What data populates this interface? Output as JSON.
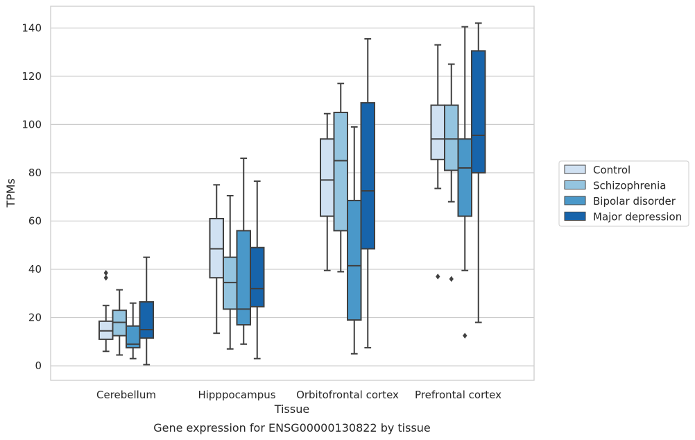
{
  "caption": "Gene expression for ENSG00000130822 by tissue",
  "chart_data": {
    "type": "boxplot",
    "xlabel": "Tissue",
    "ylabel": "TPMs",
    "ylim": [
      -6,
      149
    ],
    "yticks": [
      0,
      20,
      40,
      60,
      80,
      100,
      120,
      140
    ],
    "grid": "horizontal",
    "legend_position": "right",
    "categories": [
      "Cerebellum",
      "Hipppocampus",
      "Orbitofrontal cortex",
      "Prefrontal cortex"
    ],
    "series": [
      {
        "name": "Control",
        "color": "#d0e1f2",
        "boxes": [
          {
            "whisker_low": 6,
            "q1": 11,
            "median": 14.5,
            "q3": 18.5,
            "whisker_high": 25,
            "outliers": [
              36.5,
              38.5
            ]
          },
          {
            "whisker_low": 13.5,
            "q1": 36.5,
            "median": 48.5,
            "q3": 61,
            "whisker_high": 75,
            "outliers": []
          },
          {
            "whisker_low": 39.5,
            "q1": 62,
            "median": 77,
            "q3": 94,
            "whisker_high": 104.5,
            "outliers": []
          },
          {
            "whisker_low": 73.5,
            "q1": 85.5,
            "median": 94,
            "q3": 108,
            "whisker_high": 133,
            "outliers": [
              37
            ]
          }
        ]
      },
      {
        "name": "Schizophrenia",
        "color": "#94c4df",
        "boxes": [
          {
            "whisker_low": 4.5,
            "q1": 12.5,
            "median": 18,
            "q3": 23,
            "whisker_high": 31.5,
            "outliers": []
          },
          {
            "whisker_low": 7,
            "q1": 23.5,
            "median": 34.5,
            "q3": 45,
            "whisker_high": 70.5,
            "outliers": []
          },
          {
            "whisker_low": 39,
            "q1": 56,
            "median": 85,
            "q3": 105,
            "whisker_high": 117,
            "outliers": []
          },
          {
            "whisker_low": 68,
            "q1": 81,
            "median": 94,
            "q3": 108,
            "whisker_high": 125,
            "outliers": [
              36
            ]
          }
        ]
      },
      {
        "name": "Bipolar disorder",
        "color": "#4a98c9",
        "boxes": [
          {
            "whisker_low": 3,
            "q1": 7.5,
            "median": 9,
            "q3": 16.5,
            "whisker_high": 26,
            "outliers": []
          },
          {
            "whisker_low": 9,
            "q1": 17,
            "median": 23.5,
            "q3": 56,
            "whisker_high": 86,
            "outliers": []
          },
          {
            "whisker_low": 5,
            "q1": 19,
            "median": 41.5,
            "q3": 68.5,
            "whisker_high": 99,
            "outliers": []
          },
          {
            "whisker_low": 39.5,
            "q1": 62,
            "median": 82,
            "q3": 94,
            "whisker_high": 140.5,
            "outliers": [
              12.5
            ]
          }
        ]
      },
      {
        "name": "Major depression",
        "color": "#1764ab",
        "boxes": [
          {
            "whisker_low": 0.5,
            "q1": 11.5,
            "median": 15,
            "q3": 26.5,
            "whisker_high": 45,
            "outliers": []
          },
          {
            "whisker_low": 3,
            "q1": 24.5,
            "median": 32,
            "q3": 49,
            "whisker_high": 76.5,
            "outliers": []
          },
          {
            "whisker_low": 7.5,
            "q1": 48.5,
            "median": 72.5,
            "q3": 109,
            "whisker_high": 135.5,
            "outliers": []
          },
          {
            "whisker_low": 18,
            "q1": 80,
            "median": 95.5,
            "q3": 130.5,
            "whisker_high": 142,
            "outliers": []
          }
        ]
      }
    ]
  }
}
